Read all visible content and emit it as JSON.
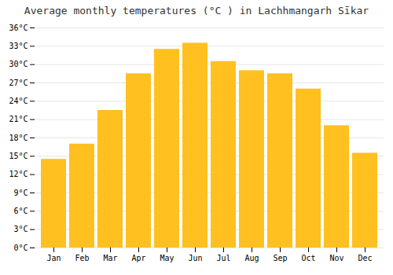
{
  "chart_data": {
    "type": "bar",
    "title": "Average monthly temperatures (°C ) in Lachhmangarh Sīkar",
    "categories": [
      "Jan",
      "Feb",
      "Mar",
      "Apr",
      "May",
      "Jun",
      "Jul",
      "Aug",
      "Sep",
      "Oct",
      "Nov",
      "Dec"
    ],
    "values": [
      14.5,
      17.0,
      22.5,
      28.5,
      32.5,
      33.5,
      30.5,
      29.0,
      28.5,
      26.0,
      20.0,
      15.5
    ],
    "color": "#FFC020",
    "ylim": [
      0,
      36
    ],
    "yticks": [
      {
        "value": 0,
        "label": "0°C"
      },
      {
        "value": 3,
        "label": "3°C"
      },
      {
        "value": 6,
        "label": "6°C"
      },
      {
        "value": 9,
        "label": "9°C"
      },
      {
        "value": 12,
        "label": "12°C"
      },
      {
        "value": 15,
        "label": "15°C"
      },
      {
        "value": 18,
        "label": "18°C"
      },
      {
        "value": 21,
        "label": "21°C"
      },
      {
        "value": 24,
        "label": "24°C"
      },
      {
        "value": 27,
        "label": "27°C"
      },
      {
        "value": 30,
        "label": "30°C"
      },
      {
        "value": 33,
        "label": "33°C"
      },
      {
        "value": 36,
        "label": "36°C"
      }
    ],
    "grid": true
  }
}
